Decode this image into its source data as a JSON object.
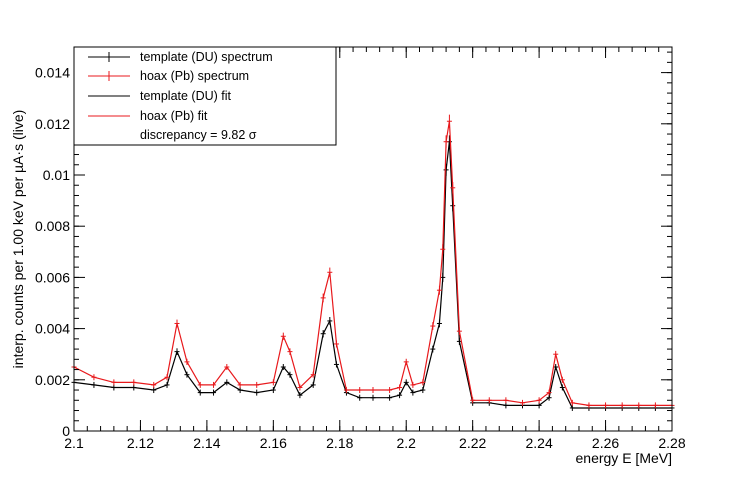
{
  "chart_data": {
    "type": "scatter",
    "xlabel": "energy E [MeV]",
    "ylabel": "interp. counts per 1.00 keV per µA·s (live)",
    "xlim": [
      2.1,
      2.28
    ],
    "ylim": [
      0,
      0.015
    ],
    "x_ticks": [
      "2.1",
      "2.12",
      "2.14",
      "2.16",
      "2.18",
      "2.2",
      "2.22",
      "2.24",
      "2.26",
      "2.28"
    ],
    "y_ticks": [
      "0",
      "0.002",
      "0.004",
      "0.006",
      "0.008",
      "0.01",
      "0.012",
      "0.014"
    ],
    "x_tick_values": [
      2.1,
      2.12,
      2.14,
      2.16,
      2.18,
      2.2,
      2.22,
      2.24,
      2.26,
      2.28
    ],
    "y_tick_values": [
      0,
      0.002,
      0.004,
      0.006,
      0.008,
      0.01,
      0.012,
      0.014
    ],
    "grid": false,
    "legend_position": "top-left",
    "legend": {
      "entries": [
        {
          "label": "template (DU) spectrum",
          "color": "#000000",
          "style": "errorbar"
        },
        {
          "label": "hoax (Pb) spectrum",
          "color": "#e8191c",
          "style": "errorbar"
        },
        {
          "label": "template (DU) fit",
          "color": "#000000",
          "style": "line"
        },
        {
          "label": "hoax (Pb) fit",
          "color": "#e8191c",
          "style": "line"
        }
      ],
      "note": "discrepancy = 9.82 σ"
    },
    "series": [
      {
        "name": "template (DU) spectrum",
        "color": "#000000",
        "x": [
          2.1,
          2.106,
          2.112,
          2.118,
          2.124,
          2.128,
          2.131,
          2.134,
          2.138,
          2.142,
          2.146,
          2.15,
          2.155,
          2.16,
          2.163,
          2.165,
          2.168,
          2.172,
          2.175,
          2.177,
          2.179,
          2.182,
          2.186,
          2.19,
          2.195,
          2.198,
          2.2,
          2.202,
          2.205,
          2.208,
          2.21,
          2.211,
          2.212,
          2.213,
          2.214,
          2.216,
          2.22,
          2.225,
          2.23,
          2.235,
          2.24,
          2.243,
          2.245,
          2.247,
          2.25,
          2.255,
          2.26,
          2.265,
          2.27,
          2.275,
          2.28
        ],
        "y": [
          0.0019,
          0.0018,
          0.0017,
          0.0017,
          0.0016,
          0.0018,
          0.0031,
          0.0022,
          0.0015,
          0.0015,
          0.0019,
          0.0016,
          0.0015,
          0.0016,
          0.0025,
          0.0022,
          0.0014,
          0.0018,
          0.0038,
          0.0043,
          0.0026,
          0.0015,
          0.0013,
          0.0013,
          0.0013,
          0.0014,
          0.0019,
          0.0015,
          0.0016,
          0.0032,
          0.0042,
          0.006,
          0.0102,
          0.0113,
          0.0088,
          0.0035,
          0.0011,
          0.0011,
          0.001,
          0.001,
          0.001,
          0.0013,
          0.0025,
          0.0017,
          0.0009,
          0.0009,
          0.0009,
          0.0009,
          0.0009,
          0.0009,
          0.0009
        ]
      },
      {
        "name": "hoax (Pb) spectrum",
        "color": "#e8191c",
        "x": [
          2.1,
          2.106,
          2.112,
          2.118,
          2.124,
          2.128,
          2.131,
          2.134,
          2.138,
          2.142,
          2.146,
          2.15,
          2.155,
          2.16,
          2.163,
          2.165,
          2.168,
          2.172,
          2.175,
          2.177,
          2.179,
          2.182,
          2.186,
          2.19,
          2.195,
          2.198,
          2.2,
          2.202,
          2.205,
          2.208,
          2.21,
          2.211,
          2.212,
          2.213,
          2.214,
          2.216,
          2.22,
          2.225,
          2.23,
          2.235,
          2.24,
          2.243,
          2.245,
          2.247,
          2.25,
          2.255,
          2.26,
          2.265,
          2.27,
          2.275,
          2.28
        ],
        "y": [
          0.0025,
          0.0021,
          0.0019,
          0.0019,
          0.0018,
          0.0021,
          0.0042,
          0.0027,
          0.0018,
          0.0018,
          0.0025,
          0.0018,
          0.0018,
          0.0019,
          0.0037,
          0.0031,
          0.0017,
          0.0022,
          0.0052,
          0.0062,
          0.0034,
          0.0016,
          0.0016,
          0.0016,
          0.0016,
          0.0017,
          0.0027,
          0.0018,
          0.0019,
          0.0041,
          0.0055,
          0.0071,
          0.0113,
          0.0121,
          0.0095,
          0.0039,
          0.0012,
          0.0012,
          0.0012,
          0.0011,
          0.0012,
          0.0015,
          0.003,
          0.002,
          0.0011,
          0.001,
          0.001,
          0.001,
          0.001,
          0.001,
          0.001
        ]
      }
    ]
  }
}
